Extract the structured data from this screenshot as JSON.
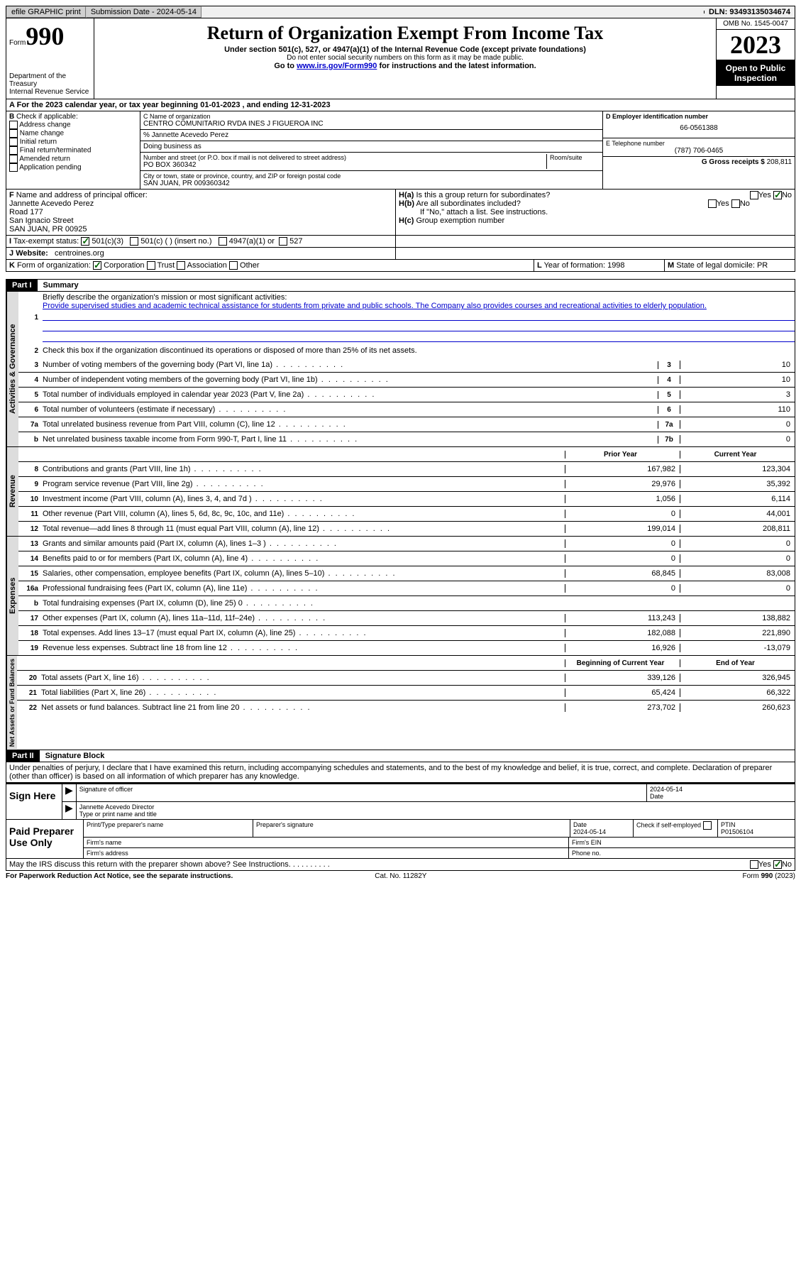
{
  "topbar": {
    "efile": "efile GRAPHIC print",
    "submission": "Submission Date - 2024-05-14",
    "dln": "DLN: 93493135034674"
  },
  "header": {
    "form_label": "Form",
    "form_num": "990",
    "dept": "Department of the Treasury",
    "irs": "Internal Revenue Service",
    "title": "Return of Organization Exempt From Income Tax",
    "sub1": "Under section 501(c), 527, or 4947(a)(1) of the Internal Revenue Code (except private foundations)",
    "sub2": "Do not enter social security numbers on this form as it may be made public.",
    "sub3_pre": "Go to ",
    "sub3_link": "www.irs.gov/Form990",
    "sub3_post": " for instructions and the latest information.",
    "omb": "OMB No. 1545-0047",
    "year": "2023",
    "open": "Open to Public Inspection"
  },
  "sectionA": {
    "label": "A",
    "text_pre": "For the 2023 calendar year, or tax year beginning ",
    "begin": "01-01-2023",
    "mid": " , and ending ",
    "end": "12-31-2023"
  },
  "sectionB": {
    "label": "B",
    "check_label": "Check if applicable:",
    "items": [
      "Address change",
      "Name change",
      "Initial return",
      "Final return/terminated",
      "Amended return",
      "Application pending"
    ]
  },
  "sectionC": {
    "name_label": "C Name of organization",
    "name": "CENTRO COMUNITARIO RVDA INES J FIGUEROA INC",
    "care_of": "% Jannette Acevedo Perez",
    "dba_label": "Doing business as",
    "street_label": "Number and street (or P.O. box if mail is not delivered to street address)",
    "room_label": "Room/suite",
    "street": "PO BOX 360342",
    "city_label": "City or town, state or province, country, and ZIP or foreign postal code",
    "city": "SAN JUAN, PR  009360342"
  },
  "sectionD": {
    "ein_label": "D Employer identification number",
    "ein": "66-0561388",
    "phone_label": "E Telephone number",
    "phone": "(787) 706-0465",
    "gross_label": "G Gross receipts $",
    "gross": "208,811"
  },
  "sectionF": {
    "label": "F",
    "officer_label": "Name and address of principal officer:",
    "officer_name": "Jannette Acevedo Perez",
    "addr1": "Road 177",
    "addr2": "San Ignacio Street",
    "addr3": "SAN JUAN, PR  00925"
  },
  "sectionH": {
    "ha_label": "H(a)",
    "ha_text": "Is this a group return for subordinates?",
    "hb_label": "H(b)",
    "hb_text": "Are all subordinates included?",
    "hb_note": "If \"No,\" attach a list. See instructions.",
    "hc_label": "H(c)",
    "hc_text": "Group exemption number",
    "yes": "Yes",
    "no": "No"
  },
  "sectionI": {
    "label": "I",
    "text": "Tax-exempt status:",
    "opt1": "501(c)(3)",
    "opt2": "501(c) (  ) (insert no.)",
    "opt3": "4947(a)(1) or",
    "opt4": "527"
  },
  "sectionJ": {
    "label": "J",
    "text": "Website:",
    "value": "centroines.org"
  },
  "sectionK": {
    "label": "K",
    "text": "Form of organization:",
    "opts": [
      "Corporation",
      "Trust",
      "Association",
      "Other"
    ]
  },
  "sectionL": {
    "label": "L",
    "text": "Year of formation: 1998"
  },
  "sectionM": {
    "label": "M",
    "text": "State of legal domicile: PR"
  },
  "part1": {
    "header": "Part I",
    "title": "Summary",
    "mission_label": "Briefly describe the organization's mission or most significant activities:",
    "mission": "Provide supervised studies and academic technical assistance for students from private and public schools. The Company also provides courses and recreational activities to elderly population.",
    "line2": "Check this box  if the organization discontinued its operations or disposed of more than 25% of its net assets.",
    "lines_a": [
      {
        "n": "3",
        "t": "Number of voting members of the governing body (Part VI, line 1a)",
        "k": "3",
        "v": "10"
      },
      {
        "n": "4",
        "t": "Number of independent voting members of the governing body (Part VI, line 1b)",
        "k": "4",
        "v": "10"
      },
      {
        "n": "5",
        "t": "Total number of individuals employed in calendar year 2023 (Part V, line 2a)",
        "k": "5",
        "v": "3"
      },
      {
        "n": "6",
        "t": "Total number of volunteers (estimate if necessary)",
        "k": "6",
        "v": "110"
      },
      {
        "n": "7a",
        "t": "Total unrelated business revenue from Part VIII, column (C), line 12",
        "k": "7a",
        "v": "0"
      },
      {
        "n": "b",
        "t": "Net unrelated business taxable income from Form 990-T, Part I, line 11",
        "k": "7b",
        "v": "0"
      }
    ],
    "prior_label": "Prior Year",
    "current_label": "Current Year",
    "boy_label": "Beginning of Current Year",
    "eoy_label": "End of Year",
    "tabs": {
      "gov": "Activities & Governance",
      "rev": "Revenue",
      "exp": "Expenses",
      "net": "Net Assets or Fund Balances"
    },
    "rev_lines": [
      {
        "n": "8",
        "t": "Contributions and grants (Part VIII, line 1h)",
        "p": "167,982",
        "c": "123,304"
      },
      {
        "n": "9",
        "t": "Program service revenue (Part VIII, line 2g)",
        "p": "29,976",
        "c": "35,392"
      },
      {
        "n": "10",
        "t": "Investment income (Part VIII, column (A), lines 3, 4, and 7d )",
        "p": "1,056",
        "c": "6,114"
      },
      {
        "n": "11",
        "t": "Other revenue (Part VIII, column (A), lines 5, 6d, 8c, 9c, 10c, and 11e)",
        "p": "0",
        "c": "44,001"
      },
      {
        "n": "12",
        "t": "Total revenue—add lines 8 through 11 (must equal Part VIII, column (A), line 12)",
        "p": "199,014",
        "c": "208,811"
      }
    ],
    "exp_lines": [
      {
        "n": "13",
        "t": "Grants and similar amounts paid (Part IX, column (A), lines 1–3 )",
        "p": "0",
        "c": "0"
      },
      {
        "n": "14",
        "t": "Benefits paid to or for members (Part IX, column (A), line 4)",
        "p": "0",
        "c": "0"
      },
      {
        "n": "15",
        "t": "Salaries, other compensation, employee benefits (Part IX, column (A), lines 5–10)",
        "p": "68,845",
        "c": "83,008"
      },
      {
        "n": "16a",
        "t": "Professional fundraising fees (Part IX, column (A), line 11e)",
        "p": "0",
        "c": "0"
      },
      {
        "n": "b",
        "t": "Total fundraising expenses (Part IX, column (D), line 25) 0",
        "p": "",
        "c": "",
        "shaded": true
      },
      {
        "n": "17",
        "t": "Other expenses (Part IX, column (A), lines 11a–11d, 11f–24e)",
        "p": "113,243",
        "c": "138,882"
      },
      {
        "n": "18",
        "t": "Total expenses. Add lines 13–17 (must equal Part IX, column (A), line 25)",
        "p": "182,088",
        "c": "221,890"
      },
      {
        "n": "19",
        "t": "Revenue less expenses. Subtract line 18 from line 12",
        "p": "16,926",
        "c": "-13,079"
      }
    ],
    "net_lines": [
      {
        "n": "20",
        "t": "Total assets (Part X, line 16)",
        "p": "339,126",
        "c": "326,945"
      },
      {
        "n": "21",
        "t": "Total liabilities (Part X, line 26)",
        "p": "65,424",
        "c": "66,322"
      },
      {
        "n": "22",
        "t": "Net assets or fund balances. Subtract line 21 from line 20",
        "p": "273,702",
        "c": "260,623"
      }
    ]
  },
  "part2": {
    "header": "Part II",
    "title": "Signature Block",
    "perjury": "Under penalties of perjury, I declare that I have examined this return, including accompanying schedules and statements, and to the best of my knowledge and belief, it is true, correct, and complete. Declaration of preparer (other than officer) is based on all information of which preparer has any knowledge.",
    "sign_here": "Sign Here",
    "sig_officer": "Signature of officer",
    "officer_name": "Jannette Acevedo Director",
    "type_name": "Type or print name and title",
    "date": "Date",
    "date_val": "2024-05-14",
    "paid": "Paid Preparer Use Only",
    "prep_name": "Print/Type preparer's name",
    "prep_sig": "Preparer's signature",
    "prep_date": "Date",
    "prep_date_val": "2024-05-14",
    "check_if": "Check  if self-employed",
    "ptin": "PTIN",
    "ptin_val": "P01506104",
    "firm_name": "Firm's name",
    "firm_ein": "Firm's EIN",
    "firm_addr": "Firm's address",
    "phone": "Phone no.",
    "discuss": "May the IRS discuss this return with the preparer shown above? See Instructions."
  },
  "footer": {
    "left": "For Paperwork Reduction Act Notice, see the separate instructions.",
    "mid": "Cat. No. 11282Y",
    "right": "Form 990 (2023)"
  }
}
